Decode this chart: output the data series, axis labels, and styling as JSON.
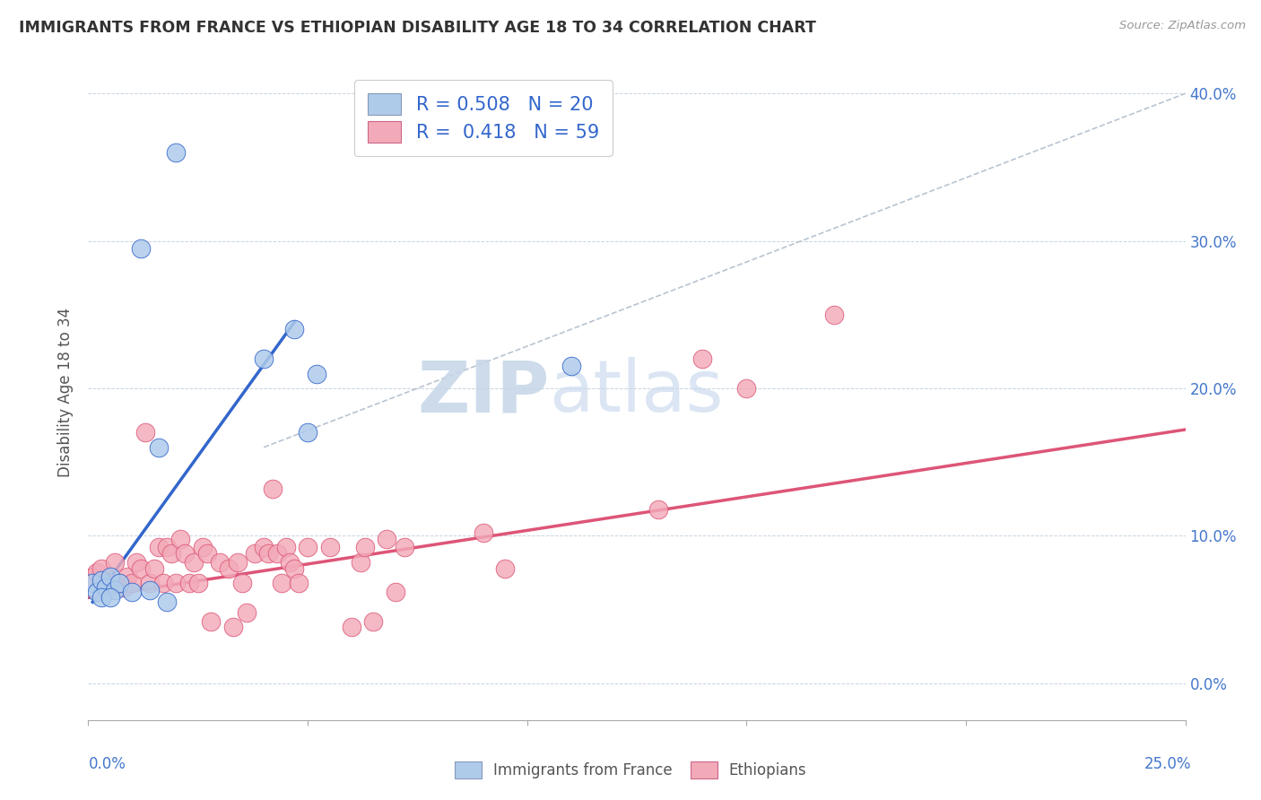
{
  "title": "IMMIGRANTS FROM FRANCE VS ETHIOPIAN DISABILITY AGE 18 TO 34 CORRELATION CHART",
  "source": "Source: ZipAtlas.com",
  "ylabel": "Disability Age 18 to 34",
  "xmin": 0.0,
  "xmax": 0.25,
  "ymin": -0.025,
  "ymax": 0.42,
  "legend1_r": "0.508",
  "legend1_n": "20",
  "legend2_r": "0.418",
  "legend2_n": "59",
  "blue_color": "#aecbea",
  "pink_color": "#f2aab8",
  "blue_line_color": "#3366cc",
  "pink_line_color": "#dd5577",
  "diagonal_color": "#b8c4d0",
  "watermark_zip": "ZIP",
  "watermark_atlas": "atlas",
  "france_points": [
    [
      0.001,
      0.068
    ],
    [
      0.002,
      0.062
    ],
    [
      0.003,
      0.07
    ],
    [
      0.004,
      0.065
    ],
    [
      0.005,
      0.072
    ],
    [
      0.006,
      0.063
    ],
    [
      0.007,
      0.068
    ],
    [
      0.01,
      0.062
    ],
    [
      0.012,
      0.295
    ],
    [
      0.014,
      0.063
    ],
    [
      0.016,
      0.16
    ],
    [
      0.018,
      0.055
    ],
    [
      0.02,
      0.36
    ],
    [
      0.04,
      0.22
    ],
    [
      0.047,
      0.24
    ],
    [
      0.05,
      0.17
    ],
    [
      0.052,
      0.21
    ],
    [
      0.11,
      0.215
    ],
    [
      0.003,
      0.058
    ],
    [
      0.005,
      0.058
    ]
  ],
  "ethiopian_points": [
    [
      0.001,
      0.072
    ],
    [
      0.002,
      0.075
    ],
    [
      0.003,
      0.078
    ],
    [
      0.004,
      0.068
    ],
    [
      0.005,
      0.068
    ],
    [
      0.006,
      0.082
    ],
    [
      0.007,
      0.068
    ],
    [
      0.008,
      0.065
    ],
    [
      0.009,
      0.072
    ],
    [
      0.01,
      0.068
    ],
    [
      0.011,
      0.082
    ],
    [
      0.012,
      0.078
    ],
    [
      0.013,
      0.17
    ],
    [
      0.014,
      0.068
    ],
    [
      0.015,
      0.078
    ],
    [
      0.016,
      0.092
    ],
    [
      0.017,
      0.068
    ],
    [
      0.018,
      0.092
    ],
    [
      0.019,
      0.088
    ],
    [
      0.02,
      0.068
    ],
    [
      0.021,
      0.098
    ],
    [
      0.022,
      0.088
    ],
    [
      0.023,
      0.068
    ],
    [
      0.024,
      0.082
    ],
    [
      0.025,
      0.068
    ],
    [
      0.026,
      0.092
    ],
    [
      0.027,
      0.088
    ],
    [
      0.028,
      0.042
    ],
    [
      0.03,
      0.082
    ],
    [
      0.032,
      0.078
    ],
    [
      0.033,
      0.038
    ],
    [
      0.034,
      0.082
    ],
    [
      0.035,
      0.068
    ],
    [
      0.036,
      0.048
    ],
    [
      0.038,
      0.088
    ],
    [
      0.04,
      0.092
    ],
    [
      0.041,
      0.088
    ],
    [
      0.042,
      0.132
    ],
    [
      0.043,
      0.088
    ],
    [
      0.044,
      0.068
    ],
    [
      0.045,
      0.092
    ],
    [
      0.046,
      0.082
    ],
    [
      0.047,
      0.078
    ],
    [
      0.048,
      0.068
    ],
    [
      0.05,
      0.092
    ],
    [
      0.055,
      0.092
    ],
    [
      0.06,
      0.038
    ],
    [
      0.062,
      0.082
    ],
    [
      0.063,
      0.092
    ],
    [
      0.065,
      0.042
    ],
    [
      0.068,
      0.098
    ],
    [
      0.07,
      0.062
    ],
    [
      0.072,
      0.092
    ],
    [
      0.09,
      0.102
    ],
    [
      0.095,
      0.078
    ],
    [
      0.13,
      0.118
    ],
    [
      0.14,
      0.22
    ],
    [
      0.15,
      0.2
    ],
    [
      0.17,
      0.25
    ]
  ],
  "blue_line_x": [
    0.001,
    0.047
  ],
  "blue_line_y": [
    0.055,
    0.245
  ],
  "pink_line_x": [
    0.0,
    0.25
  ],
  "pink_line_y": [
    0.058,
    0.172
  ],
  "diag_line_x": [
    0.04,
    0.25
  ],
  "diag_line_y": [
    0.16,
    0.4
  ],
  "yticks": [
    0.0,
    0.1,
    0.2,
    0.3,
    0.4
  ],
  "ytick_labels": [
    "0.0%",
    "10.0%",
    "20.0%",
    "30.0%",
    "40.0%"
  ]
}
